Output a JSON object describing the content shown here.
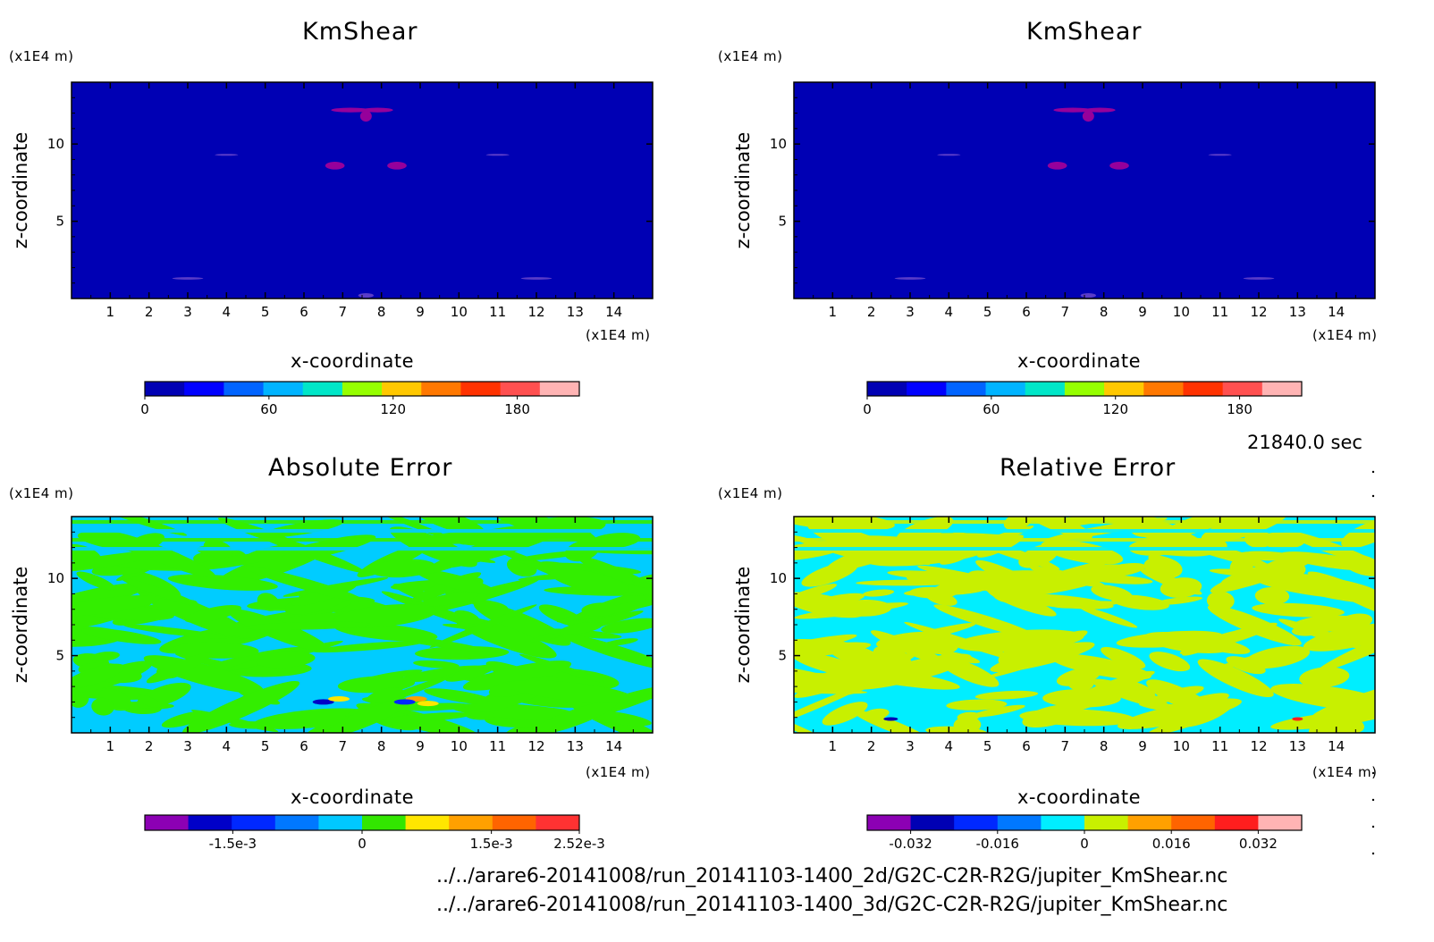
{
  "time_label": "21840.0 sec",
  "file_paths": [
    "../../arare6-20141008/run_20141103-1400_2d/G2C-C2R-R2G/jupiter_KmShear.nc",
    "../../arare6-20141008/run_20141103-1400_3d/G2C-C2R-R2G/jupiter_KmShear.nc"
  ],
  "colors": {
    "background": "#ffffff",
    "dark_blue": "#0000b4",
    "purple": "#96009b",
    "axis": "#000000"
  },
  "chart_data": [
    {
      "type": "heatmap",
      "title": "KmShear",
      "xlabel": "x-coordinate",
      "ylabel": "z-coordinate",
      "x_unit": "(x1E4 m)",
      "y_unit": "(x1E4 m)",
      "xlim": [
        0,
        15
      ],
      "ylim": [
        0,
        14
      ],
      "x_ticks": [
        1,
        2,
        3,
        4,
        5,
        6,
        7,
        8,
        9,
        10,
        11,
        12,
        13,
        14
      ],
      "y_ticks": [
        5,
        10
      ],
      "fill_color": "#0000b4",
      "colorbar": {
        "ticks": [
          "0",
          "60",
          "120",
          "180"
        ],
        "tick_values": [
          0,
          60,
          120,
          180
        ],
        "range": [
          0,
          210
        ],
        "colors": [
          "#0000b4",
          "#0000ff",
          "#0064ff",
          "#00b4ff",
          "#00e6c8",
          "#96ff00",
          "#ffc800",
          "#ff7800",
          "#ff3200",
          "#ff5050",
          "#ffb4b4"
        ]
      }
    },
    {
      "type": "heatmap",
      "title": "KmShear",
      "xlabel": "x-coordinate",
      "ylabel": "z-coordinate",
      "x_unit": "(x1E4 m)",
      "y_unit": "(x1E4 m)",
      "xlim": [
        0,
        15
      ],
      "ylim": [
        0,
        14
      ],
      "x_ticks": [
        1,
        2,
        3,
        4,
        5,
        6,
        7,
        8,
        9,
        10,
        11,
        12,
        13,
        14
      ],
      "y_ticks": [
        5,
        10
      ],
      "fill_color": "#0000b4",
      "colorbar": {
        "ticks": [
          "0",
          "60",
          "120",
          "180"
        ],
        "tick_values": [
          0,
          60,
          120,
          180
        ],
        "range": [
          0,
          210
        ],
        "colors": [
          "#0000b4",
          "#0000ff",
          "#0064ff",
          "#00b4ff",
          "#00e6c8",
          "#96ff00",
          "#ffc800",
          "#ff7800",
          "#ff3200",
          "#ff5050",
          "#ffb4b4"
        ]
      }
    },
    {
      "type": "heatmap",
      "title": "Absolute Error",
      "xlabel": "x-coordinate",
      "ylabel": "z-coordinate",
      "x_unit": "(x1E4 m)",
      "y_unit": "(x1E4 m)",
      "xlim": [
        0,
        15
      ],
      "ylim": [
        0,
        14
      ],
      "x_ticks": [
        1,
        2,
        3,
        4,
        5,
        6,
        7,
        8,
        9,
        10,
        11,
        12,
        13,
        14
      ],
      "y_ticks": [
        5,
        10
      ],
      "fill_colors": [
        "#00ccff",
        "#33ee00"
      ],
      "colorbar": {
        "ticks": [
          "-1.5e-3",
          "0",
          "1.5e-3",
          "2.52e-3"
        ],
        "tick_values": [
          -0.0015,
          0,
          0.0015,
          0.00252
        ],
        "range": [
          -0.00252,
          0.00252
        ],
        "colors": [
          "#8c00b4",
          "#0000c8",
          "#0028ff",
          "#0078ff",
          "#00c8ff",
          "#32e600",
          "#ffe600",
          "#ffa000",
          "#ff6400",
          "#ff3232"
        ]
      }
    },
    {
      "type": "heatmap",
      "title": "Relative Error",
      "xlabel": "x-coordinate",
      "ylabel": "z-coordinate",
      "x_unit": "(x1E4 m)",
      "y_unit": "(x1E4 m)",
      "xlim": [
        0,
        15
      ],
      "ylim": [
        0,
        14
      ],
      "x_ticks": [
        1,
        2,
        3,
        4,
        5,
        6,
        7,
        8,
        9,
        10,
        11,
        12,
        13,
        14
      ],
      "y_ticks": [
        5,
        10
      ],
      "fill_colors": [
        "#00eeff",
        "#c8f000"
      ],
      "colorbar": {
        "ticks": [
          "-0.032",
          "-0.016",
          "0",
          "0.016",
          "0.032"
        ],
        "tick_values": [
          -0.032,
          -0.016,
          0,
          0.016,
          0.032
        ],
        "range": [
          -0.04,
          0.04
        ],
        "colors": [
          "#8c00b4",
          "#0000b4",
          "#0028ff",
          "#0078ff",
          "#00eeff",
          "#c8f000",
          "#ffa000",
          "#ff6400",
          "#ff1e1e",
          "#ffb4b4"
        ]
      }
    }
  ]
}
